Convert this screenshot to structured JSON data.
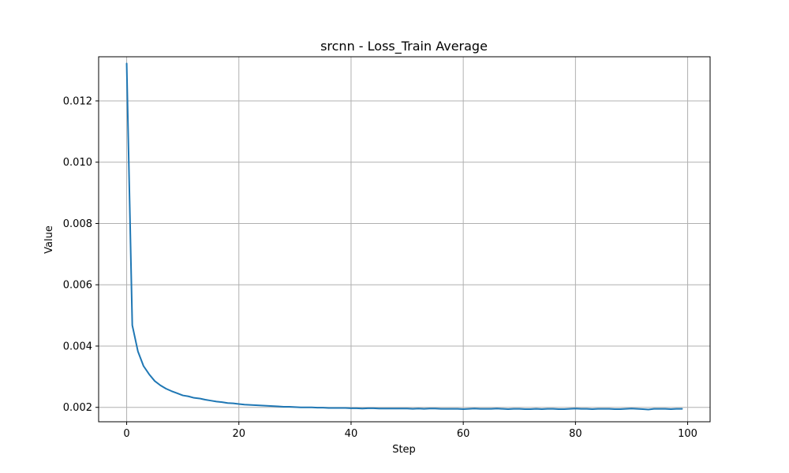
{
  "chart_data": {
    "type": "line",
    "title": "srcnn - Loss_Train Average",
    "xlabel": "Step",
    "ylabel": "Value",
    "xlim": [
      -5,
      104
    ],
    "ylim": [
      0.00153,
      0.01344
    ],
    "xticks": [
      0,
      20,
      40,
      60,
      80,
      100
    ],
    "yticks": [
      0.002,
      0.004,
      0.006,
      0.008,
      0.01,
      0.012
    ],
    "ytick_labels": [
      "0.002",
      "0.004",
      "0.006",
      "0.008",
      "0.010",
      "0.012"
    ],
    "grid": true,
    "line_color": "#1f77b4",
    "series": [
      {
        "x": [
          0,
          1,
          2,
          3,
          4,
          5,
          6,
          7,
          8,
          9,
          10,
          11,
          12,
          13,
          14,
          15,
          16,
          17,
          18,
          19,
          20,
          21,
          22,
          23,
          24,
          25,
          26,
          27,
          28,
          29,
          30,
          31,
          32,
          33,
          34,
          35,
          36,
          37,
          38,
          39,
          40,
          41,
          42,
          43,
          44,
          45,
          46,
          47,
          48,
          49,
          50,
          51,
          52,
          53,
          54,
          55,
          56,
          57,
          58,
          59,
          60,
          61,
          62,
          63,
          64,
          65,
          66,
          67,
          68,
          69,
          70,
          71,
          72,
          73,
          74,
          75,
          76,
          77,
          78,
          79,
          80,
          81,
          82,
          83,
          84,
          85,
          86,
          87,
          88,
          89,
          90,
          91,
          92,
          93,
          94,
          95,
          96,
          97,
          98,
          99
        ],
        "values": [
          0.01322,
          0.00468,
          0.00383,
          0.00335,
          0.00308,
          0.00286,
          0.00272,
          0.00261,
          0.00253,
          0.00246,
          0.00239,
          0.00236,
          0.00231,
          0.00229,
          0.00225,
          0.00222,
          0.00219,
          0.00217,
          0.00214,
          0.00213,
          0.00211,
          0.00209,
          0.00208,
          0.00207,
          0.00206,
          0.00205,
          0.00204,
          0.00203,
          0.00202,
          0.00202,
          0.00201,
          0.002,
          0.002,
          0.002,
          0.00199,
          0.00199,
          0.00198,
          0.00198,
          0.00198,
          0.00198,
          0.00197,
          0.00197,
          0.00196,
          0.00197,
          0.00197,
          0.00196,
          0.00196,
          0.00196,
          0.00196,
          0.00196,
          0.00196,
          0.00195,
          0.00196,
          0.00195,
          0.00196,
          0.00196,
          0.00195,
          0.00195,
          0.00195,
          0.00195,
          0.00194,
          0.00195,
          0.00196,
          0.00195,
          0.00195,
          0.00195,
          0.00196,
          0.00195,
          0.00194,
          0.00195,
          0.00195,
          0.00194,
          0.00194,
          0.00195,
          0.00194,
          0.00195,
          0.00195,
          0.00194,
          0.00194,
          0.00195,
          0.00196,
          0.00195,
          0.00195,
          0.00194,
          0.00195,
          0.00195,
          0.00195,
          0.00194,
          0.00194,
          0.00195,
          0.00196,
          0.00195,
          0.00194,
          0.00193,
          0.00195,
          0.00195,
          0.00195,
          0.00194,
          0.00195,
          0.00195
        ]
      }
    ]
  }
}
